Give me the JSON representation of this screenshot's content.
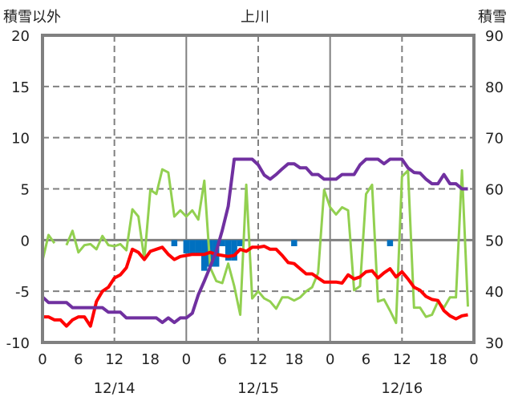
{
  "chart_data": {
    "type": "line",
    "title": "上川",
    "ylabel_left": "積雪以外",
    "ylabel_right": "積雪",
    "ylim_left": [
      -10,
      20
    ],
    "ylim_right": [
      30,
      90
    ],
    "yticks_left": [
      "20",
      "15",
      "10",
      "5",
      "0",
      "-5",
      "-10"
    ],
    "yticks_right": [
      "90",
      "80",
      "70",
      "60",
      "50",
      "40",
      "30"
    ],
    "xlim_hours": [
      0,
      72
    ],
    "xticks": [
      "0",
      "6",
      "12",
      "18",
      "0",
      "6",
      "12",
      "18",
      "0",
      "6",
      "12",
      "18",
      "0"
    ],
    "date_labels": [
      {
        "hour": 12,
        "label": "12/14"
      },
      {
        "hour": 36,
        "label": "12/15"
      },
      {
        "hour": 60,
        "label": "12/16"
      }
    ],
    "grid": true,
    "series": [
      {
        "id": "green",
        "axis": "left",
        "color": "#92d050",
        "values": [
          -2.0,
          0.5,
          -0.3,
          null,
          -0.5,
          0.9,
          -1.2,
          -0.5,
          -0.4,
          -0.9,
          0.4,
          -0.5,
          -0.6,
          -0.4,
          -1.0,
          3.0,
          2.3,
          -1.9,
          4.9,
          4.5,
          6.9,
          6.6,
          2.3,
          2.9,
          2.3,
          2.9,
          2.0,
          5.8,
          -2.7,
          -4.0,
          -4.2,
          -2.3,
          -4.5,
          -7.3,
          5.4,
          -5.7,
          -5.0,
          -5.7,
          -6.0,
          -6.7,
          -5.6,
          -5.6,
          -5.9,
          -5.6,
          -5.0,
          -4.6,
          -3.2,
          4.9,
          3.2,
          2.5,
          3.2,
          2.9,
          -4.9,
          -4.5,
          4.5,
          5.4,
          -6.0,
          -5.8,
          -6.9,
          -8.1,
          6.2,
          6.8,
          -6.6,
          -6.6,
          -7.5,
          -7.3,
          -6.0,
          -6.6,
          -5.6,
          -5.6,
          6.8,
          -6.5
        ]
      },
      {
        "id": "red",
        "axis": "left",
        "color": "#ff0000",
        "values": [
          -7.5,
          -7.5,
          -7.8,
          -7.8,
          -8.4,
          -7.8,
          -7.5,
          -7.5,
          -8.4,
          -6.0,
          -5.0,
          -4.6,
          -3.7,
          -3.4,
          -2.7,
          -0.9,
          -1.2,
          -1.9,
          -1.1,
          -0.9,
          -0.7,
          -1.4,
          -1.9,
          -1.6,
          -1.5,
          -1.4,
          -1.4,
          -1.4,
          -1.2,
          -1.4,
          -1.5,
          -1.6,
          -1.5,
          -0.9,
          -1.1,
          -0.7,
          -0.7,
          -0.6,
          -0.9,
          -0.9,
          -1.5,
          -2.2,
          -2.3,
          -2.8,
          -3.3,
          -3.3,
          -3.7,
          -4.1,
          -4.1,
          -4.1,
          -4.2,
          -3.4,
          -3.8,
          -3.6,
          -3.1,
          -3.0,
          -3.7,
          -3.2,
          -2.8,
          -3.6,
          -3.1,
          -3.8,
          -4.6,
          -4.9,
          -5.5,
          -5.8,
          -5.9,
          -6.9,
          -7.4,
          -7.7,
          -7.4,
          -7.3
        ]
      },
      {
        "id": "purple",
        "axis": "right",
        "color": "#7030a0",
        "values": [
          38.9,
          37.8,
          37.8,
          37.8,
          37.8,
          36.8,
          36.8,
          36.8,
          36.8,
          36.8,
          36.8,
          35.9,
          35.9,
          35.9,
          34.8,
          34.8,
          34.8,
          34.8,
          34.8,
          34.8,
          33.9,
          34.8,
          33.9,
          34.8,
          34.8,
          35.7,
          39.3,
          42.0,
          44.8,
          47.8,
          51.9,
          56.6,
          65.8,
          65.8,
          65.8,
          65.8,
          64.7,
          62.7,
          61.9,
          62.8,
          63.9,
          64.9,
          64.9,
          64.1,
          64.1,
          62.8,
          62.8,
          61.9,
          61.9,
          61.9,
          62.8,
          62.8,
          62.8,
          64.7,
          65.8,
          65.8,
          65.8,
          64.9,
          65.8,
          65.8,
          65.8,
          64.1,
          63.2,
          63.1,
          61.9,
          61.0,
          61.0,
          62.8,
          61.0,
          61.0,
          60.0,
          60.0
        ]
      }
    ],
    "bars": {
      "axis": "left",
      "color": "#0070c0",
      "data": [
        {
          "hour": 22,
          "value": -0.6
        },
        {
          "hour": 24,
          "value": -1.3
        },
        {
          "hour": 25,
          "value": -1.3
        },
        {
          "hour": 26,
          "value": -1.3
        },
        {
          "hour": 27,
          "value": -3.0
        },
        {
          "hour": 28,
          "value": -2.6
        },
        {
          "hour": 29,
          "value": -2.6
        },
        {
          "hour": 30,
          "value": -0.6
        },
        {
          "hour": 31,
          "value": -2.0
        },
        {
          "hour": 32,
          "value": -2.0
        },
        {
          "hour": 33,
          "value": -0.6
        },
        {
          "hour": 42,
          "value": -0.6
        },
        {
          "hour": 58,
          "value": -0.6
        }
      ]
    }
  }
}
